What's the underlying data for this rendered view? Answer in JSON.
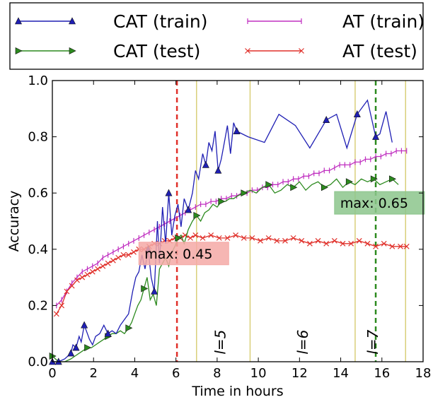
{
  "chart_data": {
    "type": "line",
    "xlabel": "Time in hours",
    "ylabel": "Accuracy",
    "xlim": [
      0,
      18
    ],
    "ylim": [
      0,
      1.0
    ],
    "xticks": [
      "0",
      "2",
      "4",
      "6",
      "8",
      "10",
      "12",
      "14",
      "16",
      "18"
    ],
    "yticks": [
      "0.0",
      "0.2",
      "0.4",
      "0.6",
      "0.8",
      "1.0"
    ],
    "grid": false,
    "legend_position": "top-left-outside",
    "series": [
      {
        "name": "CAT (train)",
        "color": "#1f1fb4",
        "marker": "triangle-up",
        "x": [
          0,
          0.3,
          0.6,
          0.9,
          1.0,
          1.15,
          1.3,
          1.4,
          1.55,
          1.7,
          1.8,
          1.95,
          2.1,
          2.3,
          2.5,
          2.7,
          2.9,
          3.1,
          3.3,
          3.5,
          3.7,
          3.9,
          4.05,
          4.2,
          4.35,
          4.5,
          4.65,
          4.8,
          4.95,
          5.1,
          5.2,
          5.35,
          5.5,
          5.65,
          5.8,
          5.95,
          6.1,
          6.25,
          6.4,
          6.6,
          6.8,
          6.95,
          7.1,
          7.3,
          7.45,
          7.6,
          7.75,
          7.9,
          8.05,
          8.2,
          8.35,
          8.5,
          8.65,
          8.8,
          8.95,
          9.5,
          10.3,
          11.0,
          11.8,
          12.5,
          13.3,
          13.8,
          14.3,
          14.8,
          15.3,
          15.7,
          15.9,
          16.2,
          16.5
        ],
        "y": [
          0.0,
          0.0,
          0.01,
          0.03,
          0.06,
          0.05,
          0.09,
          0.07,
          0.13,
          0.1,
          0.08,
          0.06,
          0.09,
          0.1,
          0.13,
          0.1,
          0.11,
          0.1,
          0.13,
          0.15,
          0.17,
          0.25,
          0.3,
          0.32,
          0.38,
          0.33,
          0.4,
          0.3,
          0.25,
          0.5,
          0.35,
          0.55,
          0.42,
          0.6,
          0.45,
          0.52,
          0.56,
          0.48,
          0.58,
          0.54,
          0.6,
          0.68,
          0.65,
          0.74,
          0.7,
          0.78,
          0.75,
          0.82,
          0.68,
          0.72,
          0.78,
          0.84,
          0.74,
          0.85,
          0.82,
          0.8,
          0.78,
          0.88,
          0.84,
          0.76,
          0.86,
          0.88,
          0.76,
          0.88,
          0.93,
          0.8,
          0.81,
          0.89,
          0.78
        ],
        "marker_every": [
          0,
          1,
          3,
          5,
          8,
          15,
          26,
          28,
          33,
          39,
          44,
          48,
          54,
          60,
          63,
          65
        ]
      },
      {
        "name": "CAT (test)",
        "color": "#2c8a1e",
        "marker": "triangle-right",
        "x": [
          0,
          0.3,
          0.6,
          0.9,
          1.1,
          1.3,
          1.5,
          1.7,
          1.9,
          2.1,
          2.3,
          2.5,
          2.7,
          2.9,
          3.1,
          3.3,
          3.5,
          3.7,
          3.85,
          4.0,
          4.15,
          4.3,
          4.45,
          4.6,
          4.75,
          4.9,
          5.05,
          5.2,
          5.35,
          5.5,
          5.65,
          5.8,
          5.95,
          6.1,
          6.25,
          6.4,
          6.6,
          6.8,
          7.0,
          7.2,
          7.4,
          7.6,
          7.8,
          8.0,
          8.2,
          8.4,
          8.6,
          8.8,
          9.0,
          9.3,
          9.6,
          9.9,
          10.2,
          10.5,
          10.8,
          11.1,
          11.4,
          11.7,
          12.0,
          12.3,
          12.6,
          12.9,
          13.2,
          13.5,
          13.8,
          14.1,
          14.4,
          14.7,
          15.0,
          15.3,
          15.6,
          15.9,
          16.2,
          16.5,
          16.8
        ],
        "y": [
          0.02,
          0.0,
          0.0,
          0.01,
          0.02,
          0.03,
          0.04,
          0.05,
          0.05,
          0.06,
          0.07,
          0.08,
          0.09,
          0.1,
          0.1,
          0.11,
          0.1,
          0.12,
          0.14,
          0.17,
          0.2,
          0.22,
          0.26,
          0.3,
          0.22,
          0.24,
          0.2,
          0.33,
          0.35,
          0.37,
          0.34,
          0.39,
          0.41,
          0.44,
          0.45,
          0.42,
          0.47,
          0.5,
          0.52,
          0.5,
          0.53,
          0.54,
          0.56,
          0.55,
          0.57,
          0.57,
          0.58,
          0.58,
          0.59,
          0.6,
          0.61,
          0.6,
          0.62,
          0.63,
          0.6,
          0.61,
          0.63,
          0.62,
          0.64,
          0.61,
          0.63,
          0.64,
          0.62,
          0.63,
          0.65,
          0.62,
          0.64,
          0.63,
          0.65,
          0.64,
          0.65,
          0.63,
          0.64,
          0.65,
          0.63
        ],
        "marker_every": [
          0,
          7,
          12,
          17,
          22,
          33,
          38,
          44,
          49,
          53,
          57,
          62,
          66,
          70,
          73
        ]
      },
      {
        "name": "AT (train)",
        "color": "#c030c0",
        "marker": "vline",
        "x": [
          0.2,
          0.45,
          0.7,
          0.95,
          1.2,
          1.45,
          1.7,
          1.95,
          2.2,
          2.45,
          2.7,
          2.95,
          3.2,
          3.45,
          3.7,
          3.95,
          4.2,
          4.45,
          4.7,
          4.95,
          5.2,
          5.45,
          5.7,
          5.95,
          6.2,
          6.45,
          6.7,
          6.95,
          7.2,
          7.45,
          7.7,
          7.95,
          8.2,
          8.45,
          8.7,
          8.95,
          9.2,
          9.45,
          9.7,
          9.95,
          10.2,
          10.45,
          10.7,
          10.95,
          11.2,
          11.45,
          11.7,
          11.95,
          12.2,
          12.45,
          12.7,
          12.95,
          13.2,
          13.45,
          13.7,
          13.95,
          14.2,
          14.45,
          14.7,
          14.95,
          15.2,
          15.45,
          15.7,
          15.95,
          16.2,
          16.45,
          16.7,
          16.95,
          17.2
        ],
        "y": [
          0.2,
          0.22,
          0.25,
          0.28,
          0.3,
          0.32,
          0.33,
          0.34,
          0.35,
          0.37,
          0.38,
          0.39,
          0.4,
          0.41,
          0.42,
          0.43,
          0.44,
          0.45,
          0.46,
          0.47,
          0.48,
          0.49,
          0.5,
          0.51,
          0.52,
          0.53,
          0.54,
          0.55,
          0.56,
          0.56,
          0.57,
          0.57,
          0.58,
          0.58,
          0.59,
          0.59,
          0.6,
          0.6,
          0.61,
          0.61,
          0.62,
          0.62,
          0.63,
          0.63,
          0.64,
          0.64,
          0.65,
          0.65,
          0.66,
          0.66,
          0.67,
          0.67,
          0.68,
          0.68,
          0.69,
          0.7,
          0.7,
          0.7,
          0.71,
          0.71,
          0.72,
          0.72,
          0.73,
          0.73,
          0.74,
          0.74,
          0.75,
          0.75,
          0.75
        ]
      },
      {
        "name": "AT (test)",
        "color": "#e0302a",
        "marker": "x",
        "x": [
          0.2,
          0.45,
          0.7,
          0.95,
          1.2,
          1.45,
          1.7,
          1.95,
          2.2,
          2.45,
          2.7,
          2.95,
          3.2,
          3.45,
          3.7,
          3.95,
          4.2,
          4.45,
          4.7,
          4.95,
          5.2,
          5.45,
          5.7,
          5.95,
          6.2,
          6.45,
          6.7,
          6.95,
          7.3,
          7.7,
          8.1,
          8.5,
          8.9,
          9.3,
          9.7,
          10.1,
          10.5,
          10.9,
          11.3,
          11.7,
          12.1,
          12.5,
          12.9,
          13.3,
          13.7,
          14.1,
          14.5,
          14.9,
          15.3,
          15.7,
          16.1,
          16.5,
          16.9,
          17.2
        ],
        "y": [
          0.17,
          0.2,
          0.25,
          0.27,
          0.29,
          0.3,
          0.31,
          0.32,
          0.33,
          0.34,
          0.35,
          0.36,
          0.37,
          0.38,
          0.38,
          0.39,
          0.4,
          0.4,
          0.41,
          0.42,
          0.42,
          0.43,
          0.43,
          0.44,
          0.44,
          0.45,
          0.44,
          0.45,
          0.44,
          0.45,
          0.44,
          0.44,
          0.45,
          0.44,
          0.44,
          0.43,
          0.44,
          0.43,
          0.43,
          0.44,
          0.43,
          0.42,
          0.43,
          0.42,
          0.43,
          0.42,
          0.42,
          0.43,
          0.42,
          0.41,
          0.42,
          0.41,
          0.41,
          0.41
        ]
      }
    ],
    "reference_lines": {
      "max_at_x": 6.05,
      "max_cat_x": 15.7,
      "max_at_color": "#e0302a",
      "max_cat_color": "#2c8a1e",
      "phase_lines_x": [
        7.0,
        9.6,
        14.7,
        17.15
      ],
      "phase_color": "#d9cf7a"
    },
    "annotations": [
      {
        "name": "max-at-annotation",
        "text": "max: 0.45",
        "x": 4.2,
        "y": 0.38,
        "bg": "#f4a9a6"
      },
      {
        "name": "max-cat-annotation",
        "text": "max: 0.65",
        "x": 13.7,
        "y": 0.56,
        "bg": "#8cc58c"
      }
    ],
    "phase_labels": [
      {
        "text": "l=5",
        "x": 8.2,
        "y": 0.07
      },
      {
        "text": "l=6",
        "x": 12.2,
        "y": 0.07
      },
      {
        "text": "l=7",
        "x": 15.6,
        "y": 0.07
      }
    ]
  }
}
